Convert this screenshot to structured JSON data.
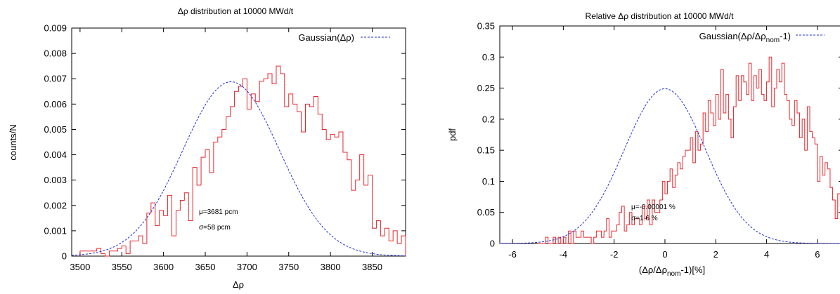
{
  "chart_data": [
    {
      "type": "histogram",
      "title": "Δρ distribution at 10000 MWd/t",
      "xlabel": "Δρ",
      "ylabel": "counts/N",
      "xlim": [
        3490,
        3890
      ],
      "ylim": [
        0,
        0.009
      ],
      "xticks": [
        3500,
        3550,
        3600,
        3650,
        3700,
        3750,
        3800,
        3850
      ],
      "xtick_labels": [
        "3500",
        "3550",
        "3600",
        "3650",
        "3700",
        "3750",
        "3800",
        "3850"
      ],
      "yticks": [
        0,
        0.001,
        0.002,
        0.003,
        0.004,
        0.005,
        0.006,
        0.007,
        0.008,
        0.009
      ],
      "ytick_labels": [
        "0",
        "0.001",
        "0.002",
        "0.003",
        "0.004",
        "0.005",
        "0.006",
        "0.007",
        "0.008",
        "0.009"
      ],
      "grid": false,
      "legend_position": "top-right",
      "histogram": {
        "name": "",
        "color": "#e8262c",
        "bins": [
          [
            3500,
            0.0002
          ],
          [
            3505,
            0.0002
          ],
          [
            3510,
            0.0002
          ],
          [
            3515,
            0.0002
          ],
          [
            3520,
            0.0003
          ],
          [
            3525,
            0.0001
          ],
          [
            3530,
            0
          ],
          [
            3535,
            0.0002
          ],
          [
            3540,
            0.0002
          ],
          [
            3545,
            0.0003
          ],
          [
            3550,
            0.0004
          ],
          [
            3555,
            0.0001
          ],
          [
            3560,
            0.0006
          ],
          [
            3565,
            0.0006
          ],
          [
            3570,
            0.0008
          ],
          [
            3575,
            0.0005
          ],
          [
            3580,
            0.0017
          ],
          [
            3585,
            0.0021
          ],
          [
            3590,
            0.0012
          ],
          [
            3595,
            0.0018
          ],
          [
            3600,
            0.0016
          ],
          [
            3605,
            0.0024
          ],
          [
            3610,
            0.0008
          ],
          [
            3615,
            0.0018
          ],
          [
            3620,
            0.0022
          ],
          [
            3625,
            0.0025
          ],
          [
            3630,
            0.0014
          ],
          [
            3635,
            0.0035
          ],
          [
            3640,
            0.0028
          ],
          [
            3645,
            0.0039
          ],
          [
            3650,
            0.0042
          ],
          [
            3655,
            0.0033
          ],
          [
            3660,
            0.0045
          ],
          [
            3665,
            0.0047
          ],
          [
            3670,
            0.005
          ],
          [
            3675,
            0.0055
          ],
          [
            3680,
            0.0059
          ],
          [
            3685,
            0.0065
          ],
          [
            3690,
            0.0067
          ],
          [
            3695,
            0.007
          ],
          [
            3700,
            0.0058
          ],
          [
            3705,
            0.0064
          ],
          [
            3710,
            0.0061
          ],
          [
            3715,
            0.0069
          ],
          [
            3720,
            0.007
          ],
          [
            3725,
            0.0072
          ],
          [
            3730,
            0.0068
          ],
          [
            3735,
            0.0075
          ],
          [
            3740,
            0.0072
          ],
          [
            3745,
            0.0059
          ],
          [
            3750,
            0.0064
          ],
          [
            3755,
            0.006
          ],
          [
            3760,
            0.0057
          ],
          [
            3765,
            0.0049
          ],
          [
            3770,
            0.006
          ],
          [
            3775,
            0.0059
          ],
          [
            3780,
            0.0063
          ],
          [
            3785,
            0.0056
          ],
          [
            3790,
            0.005
          ],
          [
            3795,
            0.0046
          ],
          [
            3800,
            0.0048
          ],
          [
            3805,
            0.0047
          ],
          [
            3810,
            0.0049
          ],
          [
            3815,
            0.0041
          ],
          [
            3820,
            0.0038
          ],
          [
            3825,
            0.0026
          ],
          [
            3830,
            0.003
          ],
          [
            3835,
            0.004
          ],
          [
            3840,
            0.0028
          ],
          [
            3845,
            0.0032
          ],
          [
            3850,
            0.0011
          ],
          [
            3855,
            0.0014
          ],
          [
            3860,
            0.0008
          ],
          [
            3865,
            0.0011
          ],
          [
            3870,
            0.0006
          ],
          [
            3875,
            0.001
          ],
          [
            3880,
            0.0005
          ],
          [
            3885,
            0.0008
          ]
        ]
      },
      "curve": {
        "name": "Gaussian(Δρ)",
        "color": "#1f2fd9",
        "style": "dashed",
        "mu": 3681,
        "sigma": 58,
        "peak": 0.00688
      },
      "annotations": [
        "μ=3681 pcm",
        "σ=58 pcm"
      ]
    },
    {
      "type": "histogram",
      "title": "Relative Δρ distribution at 10000 MWd/t",
      "xlabel_main": "(Δρ/Δρ",
      "xlabel_sub": "nom",
      "xlabel_tail": "-1)[%]",
      "ylabel": "pdf",
      "xlim": [
        -6.5,
        7
      ],
      "ylim": [
        0,
        0.35
      ],
      "xticks": [
        -6,
        -4,
        -2,
        0,
        2,
        4,
        6
      ],
      "xtick_labels": [
        "-6",
        "-4",
        "-2",
        "0",
        "2",
        "4",
        "6"
      ],
      "yticks": [
        0,
        0.05,
        0.1,
        0.15,
        0.2,
        0.25,
        0.3,
        0.35
      ],
      "ytick_labels": [
        "0",
        "0.05",
        "0.1",
        "0.15",
        "0.2",
        "0.25",
        "0.3",
        "0.35"
      ],
      "grid": false,
      "legend_position": "top-right",
      "histogram": {
        "name": "",
        "color": "#e8262c",
        "bin_start": -5.0,
        "bin_width": 0.1,
        "values": [
          0.0,
          0.0,
          0.0,
          0.01,
          0.0,
          0.0,
          0.01,
          0.0,
          0.01,
          0.0,
          0.01,
          0.0,
          0.02,
          0.0,
          0.02,
          0.01,
          0.01,
          0.02,
          0.01,
          0.01,
          0.01,
          0.0,
          0.01,
          0.02,
          0.02,
          0.01,
          0.02,
          0.04,
          0.01,
          0.02,
          0.02,
          0.03,
          0.05,
          0.06,
          0.02,
          0.03,
          0.05,
          0.03,
          0.04,
          0.04,
          0.03,
          0.06,
          0.04,
          0.07,
          0.03,
          0.07,
          0.05,
          0.05,
          0.07,
          0.1,
          0.08,
          0.1,
          0.12,
          0.09,
          0.11,
          0.13,
          0.12,
          0.14,
          0.15,
          0.15,
          0.17,
          0.13,
          0.18,
          0.15,
          0.16,
          0.21,
          0.18,
          0.23,
          0.21,
          0.19,
          0.24,
          0.2,
          0.28,
          0.21,
          0.24,
          0.2,
          0.17,
          0.22,
          0.27,
          0.23,
          0.27,
          0.26,
          0.24,
          0.29,
          0.23,
          0.27,
          0.25,
          0.28,
          0.24,
          0.23,
          0.26,
          0.3,
          0.22,
          0.25,
          0.28,
          0.26,
          0.29,
          0.24,
          0.23,
          0.2,
          0.19,
          0.23,
          0.21,
          0.17,
          0.2,
          0.15,
          0.22,
          0.18,
          0.17,
          0.16,
          0.1,
          0.14,
          0.11,
          0.13,
          0.12,
          0.09,
          0.07,
          0.04,
          0.08,
          0.06,
          0.07,
          0.05,
          0.06,
          0.05,
          0.06,
          0.05,
          0.04,
          0.03,
          0.02,
          0.03,
          0.02,
          0.03,
          0.02,
          0.01,
          0.02,
          0.01,
          0.01,
          0.01,
          0.0,
          0.01,
          0.01,
          0.0,
          0.0,
          0.01,
          0.0,
          0.0,
          0.0,
          0.0,
          0.0,
          0.0,
          0.0,
          0.0,
          0.01,
          0.0,
          0.0,
          0.0,
          0.0,
          0.0,
          0.0,
          0.0
        ]
      },
      "curve": {
        "name_main": "Gaussian(Δρ/Δρ",
        "name_sub": "nom",
        "name_tail": "-1)",
        "color": "#1f2fd9",
        "style": "dashed",
        "mu": 0,
        "sigma": 1.6,
        "peak": 0.249
      },
      "annotations": [
        "μ=-0.00001 %",
        "σ=1.6 %"
      ]
    }
  ]
}
